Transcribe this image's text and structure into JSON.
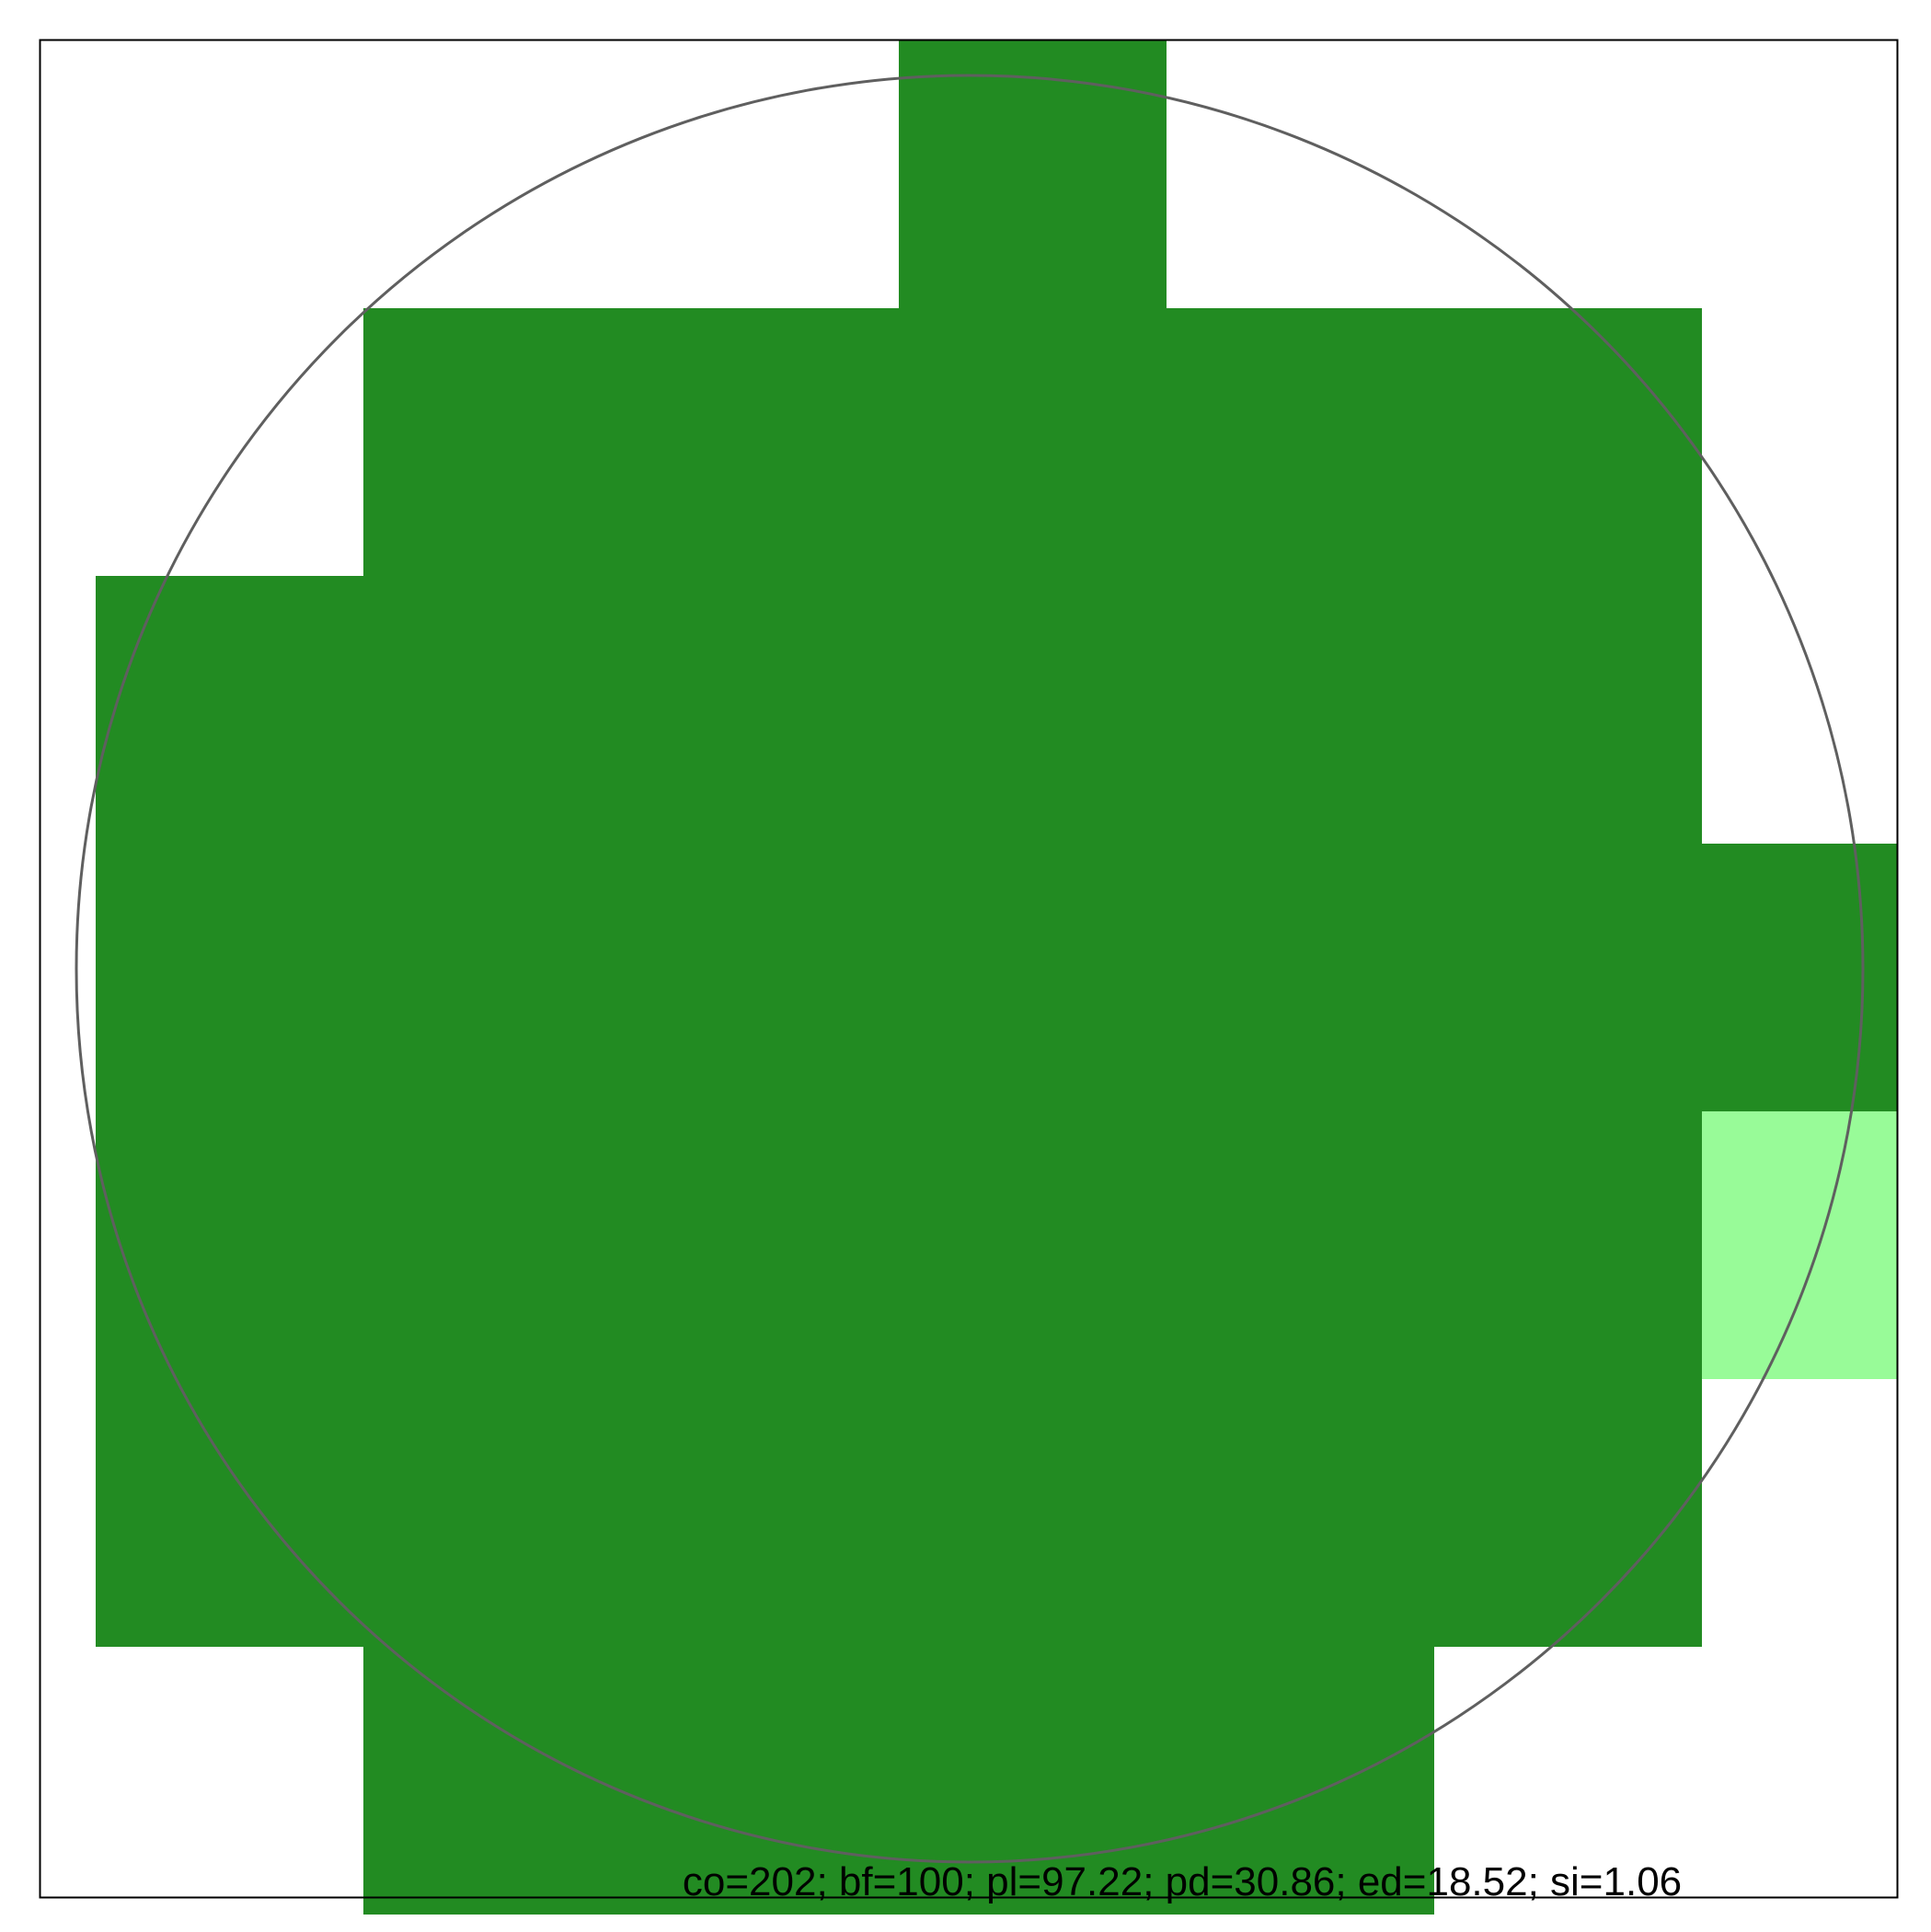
{
  "map": {
    "cell_grid": {
      "columns": 7,
      "rows": 7,
      "cells": [
        {
          "col": 3,
          "row": 0,
          "state": "dark"
        },
        {
          "col": 1,
          "row": 1,
          "state": "dark"
        },
        {
          "col": 2,
          "row": 1,
          "state": "dark"
        },
        {
          "col": 3,
          "row": 1,
          "state": "dark"
        },
        {
          "col": 4,
          "row": 1,
          "state": "dark"
        },
        {
          "col": 5,
          "row": 1,
          "state": "dark"
        },
        {
          "col": 0,
          "row": 2,
          "state": "dark"
        },
        {
          "col": 1,
          "row": 2,
          "state": "dark"
        },
        {
          "col": 2,
          "row": 2,
          "state": "dark"
        },
        {
          "col": 3,
          "row": 2,
          "state": "dark"
        },
        {
          "col": 4,
          "row": 2,
          "state": "dark"
        },
        {
          "col": 5,
          "row": 2,
          "state": "dark"
        },
        {
          "col": 0,
          "row": 3,
          "state": "dark"
        },
        {
          "col": 1,
          "row": 3,
          "state": "dark"
        },
        {
          "col": 2,
          "row": 3,
          "state": "dark"
        },
        {
          "col": 3,
          "row": 3,
          "state": "dark"
        },
        {
          "col": 4,
          "row": 3,
          "state": "dark"
        },
        {
          "col": 5,
          "row": 3,
          "state": "dark"
        },
        {
          "col": 6,
          "row": 3,
          "state": "dark"
        },
        {
          "col": 0,
          "row": 4,
          "state": "dark"
        },
        {
          "col": 1,
          "row": 4,
          "state": "dark"
        },
        {
          "col": 2,
          "row": 4,
          "state": "dark"
        },
        {
          "col": 3,
          "row": 4,
          "state": "dark"
        },
        {
          "col": 4,
          "row": 4,
          "state": "dark"
        },
        {
          "col": 5,
          "row": 4,
          "state": "dark"
        },
        {
          "col": 6,
          "row": 4,
          "state": "light"
        },
        {
          "col": 0,
          "row": 5,
          "state": "dark"
        },
        {
          "col": 1,
          "row": 5,
          "state": "dark"
        },
        {
          "col": 2,
          "row": 5,
          "state": "dark"
        },
        {
          "col": 3,
          "row": 5,
          "state": "dark"
        },
        {
          "col": 4,
          "row": 5,
          "state": "dark"
        },
        {
          "col": 5,
          "row": 5,
          "state": "dark"
        },
        {
          "col": 1,
          "row": 6,
          "state": "dark"
        },
        {
          "col": 2,
          "row": 6,
          "state": "dark"
        },
        {
          "col": 3,
          "row": 6,
          "state": "dark"
        },
        {
          "col": 4,
          "row": 6,
          "state": "dark"
        }
      ]
    },
    "colors": {
      "dark": "#228b22",
      "light": "#98fb98",
      "circle": "#5f5f5f",
      "frame": "#000000",
      "background": "#ffffff"
    },
    "stats_text": "co=202; bf=100; pl=97.22; pd=30.86; ed=18.52; si=1.06"
  }
}
